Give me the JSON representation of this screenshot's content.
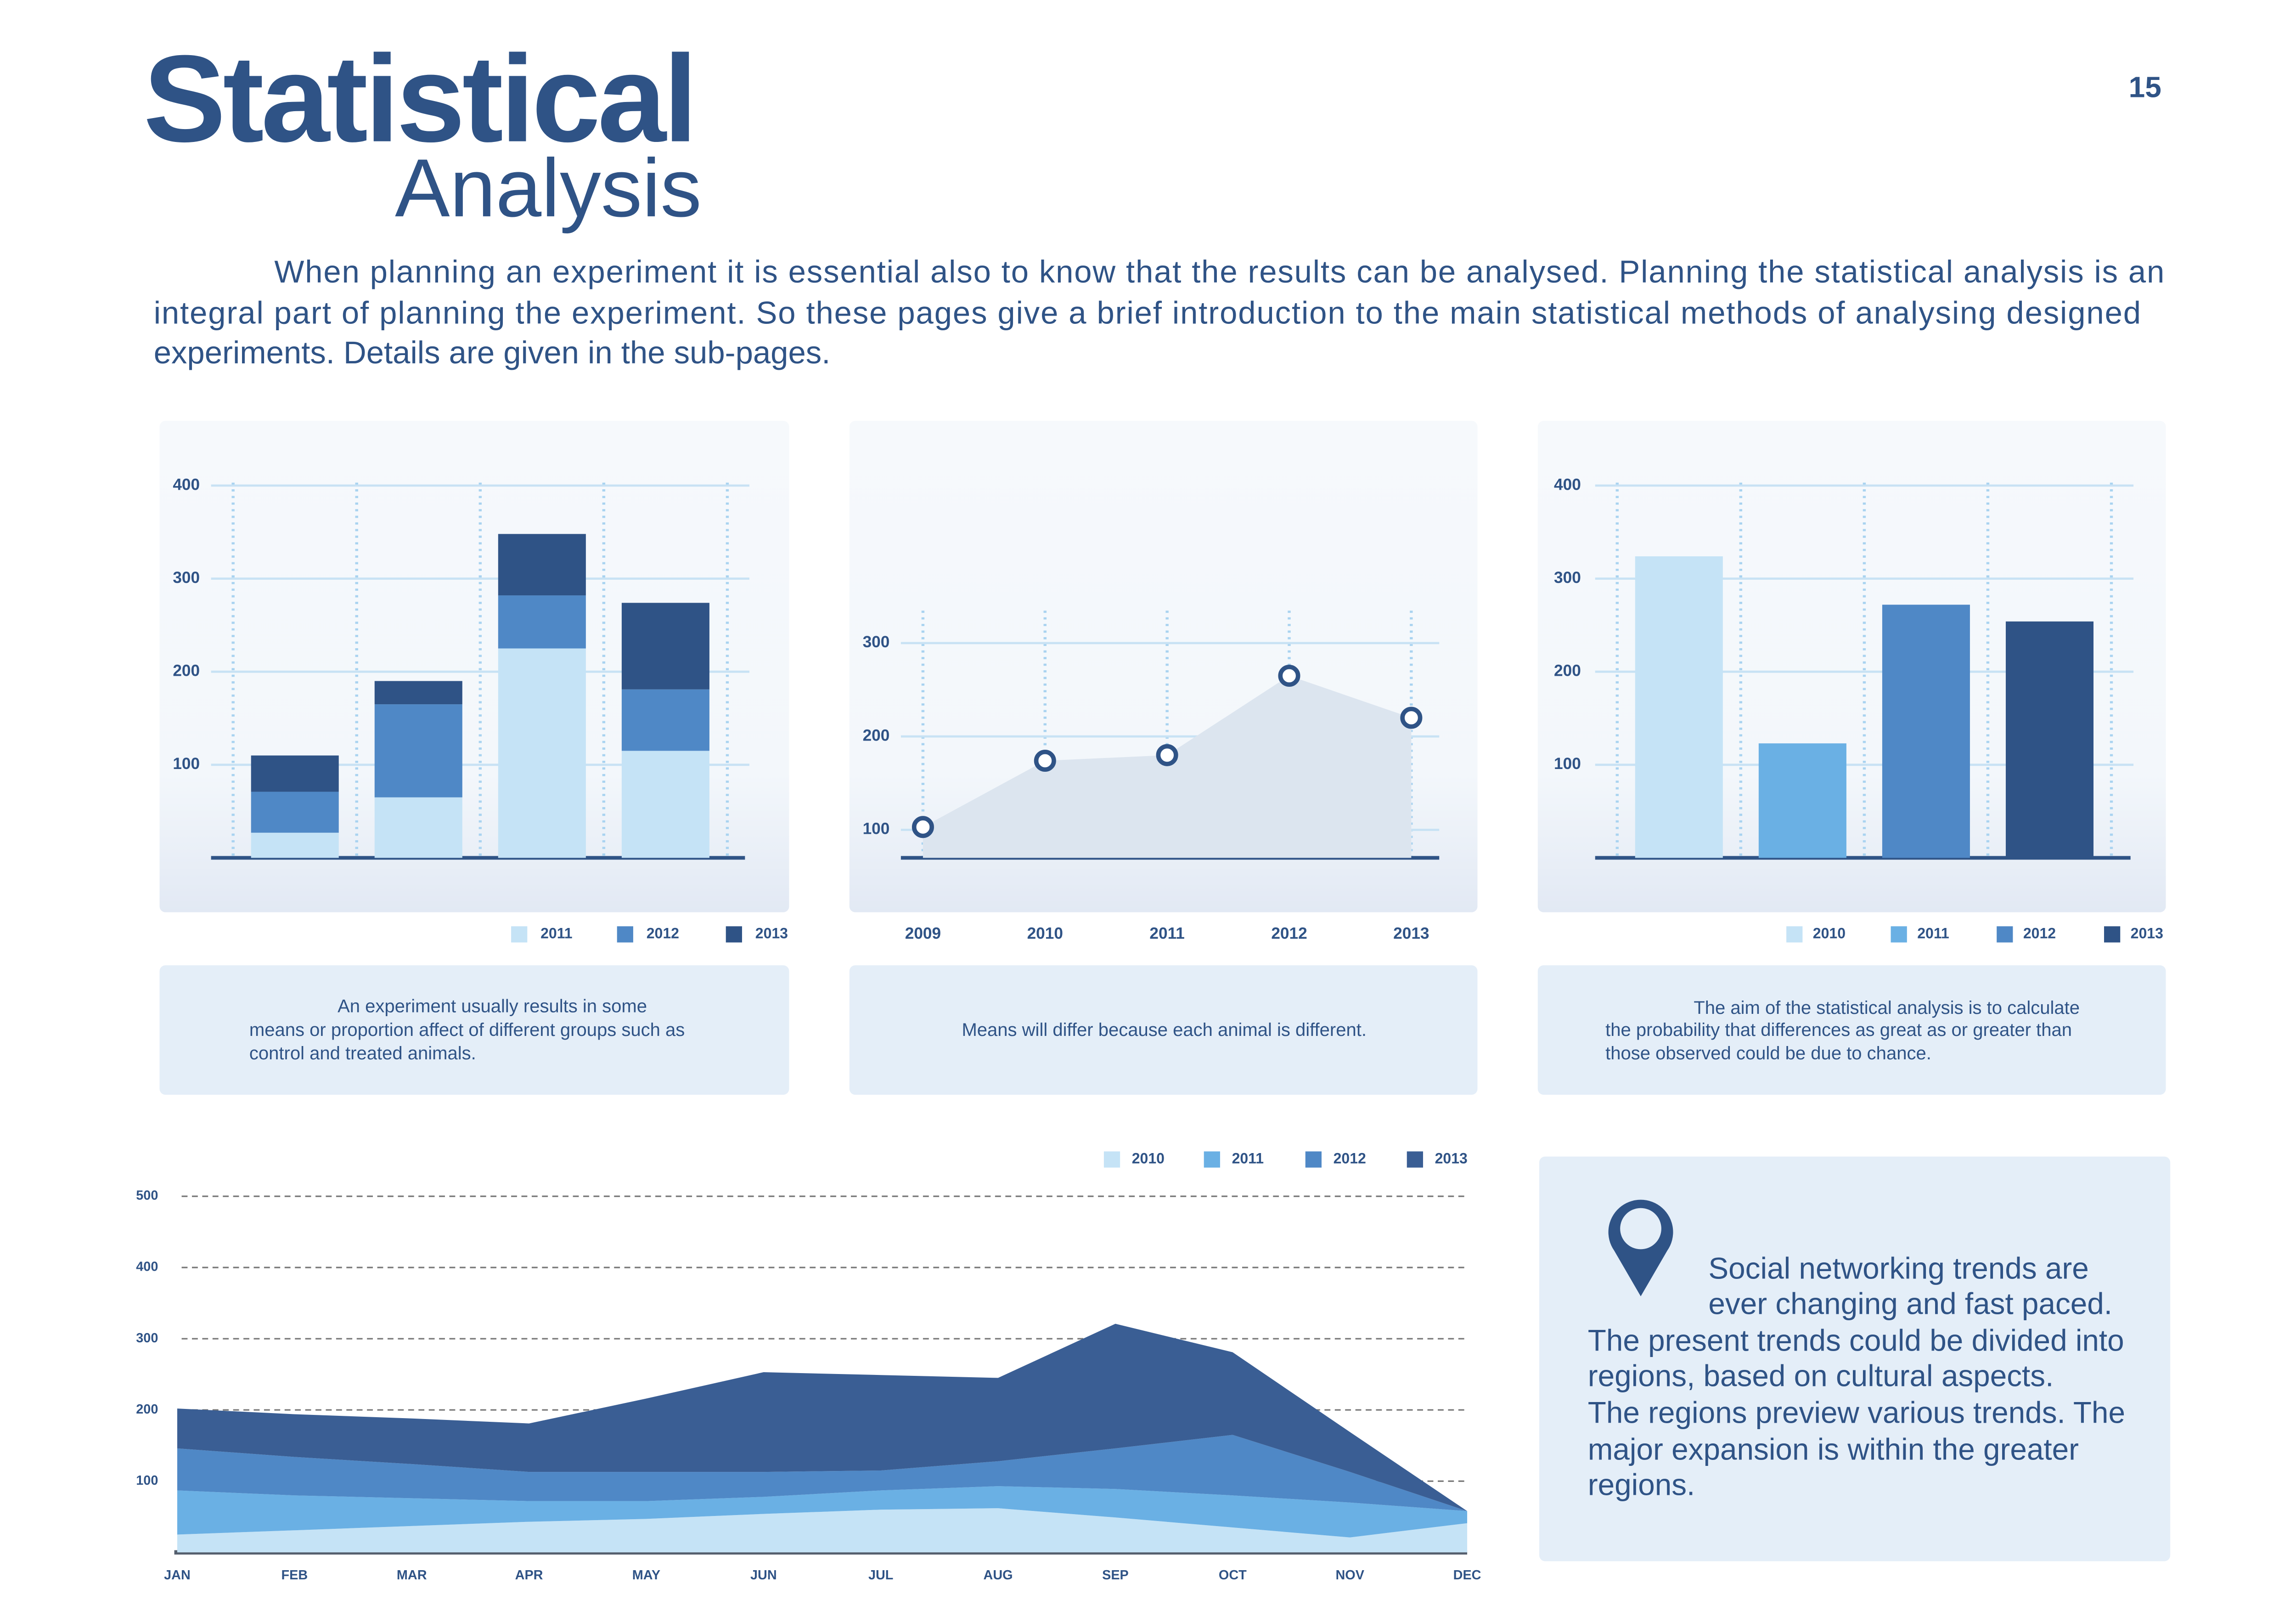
{
  "page": {
    "number": "15",
    "title": "Statistical",
    "subtitle": "Analysis",
    "intro": [
      "When planning an experiment it is essential also to know that the results can be analysed. Planning the statistical analysis is an",
      "integral part of planning the experiment. So these pages give a brief introduction to the main statistical methods of analysing designed",
      "experiments. Details are given in the sub-pages."
    ]
  },
  "chart_data": [
    {
      "type": "bar",
      "stacked": true,
      "categories": [
        null,
        null,
        null,
        null
      ],
      "series": [
        {
          "name": "2011",
          "color": "#c5e3f6",
          "values": [
            27,
            65,
            225,
            115
          ]
        },
        {
          "name": "2012",
          "color": "#4f88c6",
          "values": [
            44,
            100,
            57,
            66
          ]
        },
        {
          "name": "2013",
          "color": "#2f5386",
          "values": [
            39,
            25,
            66,
            93
          ]
        }
      ],
      "ylim": [
        0,
        400
      ],
      "yticks": [
        100,
        200,
        300,
        400
      ],
      "grid": true,
      "legend": true
    },
    {
      "type": "line",
      "categories": [
        "2009",
        "2010",
        "2011",
        "2012",
        "2013"
      ],
      "values": [
        103,
        174,
        180,
        265,
        220
      ],
      "color": "#2f5386",
      "fill_color": "#dce5ef",
      "ylim": [
        70,
        330
      ],
      "yticks": [
        100,
        200,
        300
      ],
      "grid": true
    },
    {
      "type": "bar",
      "stacked": false,
      "categories": [
        null
      ],
      "series": [
        {
          "name": "2010",
          "color": "#c5e3f6",
          "values": [
            324
          ]
        },
        {
          "name": "2011",
          "color": "#6ab0e4",
          "values": [
            123
          ]
        },
        {
          "name": "2012",
          "color": "#4f88c6",
          "values": [
            272
          ]
        },
        {
          "name": "2013",
          "color": "#2f5386",
          "values": [
            254
          ]
        }
      ],
      "ylim": [
        0,
        400
      ],
      "yticks": [
        100,
        200,
        300,
        400
      ],
      "grid": true,
      "legend": true
    },
    {
      "type": "area",
      "stacked": true,
      "categories": [
        "JAN",
        "FEB",
        "MAR",
        "APR",
        "MAY",
        "JUN",
        "JUL",
        "AUG",
        "SEP",
        "OCT",
        "NOV",
        "DEC"
      ],
      "series": [
        {
          "name": "2010",
          "color": "#c5e3f6",
          "values": [
            25,
            31,
            37,
            43,
            47,
            54,
            60,
            62,
            49,
            35,
            21,
            41
          ]
        },
        {
          "name": "2011",
          "color": "#6ab0e4",
          "values": [
            62,
            49,
            39,
            29,
            25,
            24,
            27,
            31,
            40,
            45,
            49,
            17
          ]
        },
        {
          "name": "2012",
          "color": "#4f88c6",
          "values": [
            59,
            54,
            48,
            41,
            41,
            35,
            28,
            35,
            57,
            85,
            43,
            0
          ]
        },
        {
          "name": "2013",
          "color": "#3a5e94",
          "values": [
            56,
            60,
            64,
            68,
            103,
            140,
            134,
            117,
            175,
            116,
            56,
            0
          ]
        }
      ],
      "ylim": [
        0,
        500
      ],
      "yticks": [
        100,
        200,
        300,
        400,
        500
      ],
      "grid": true,
      "legend": true
    }
  ],
  "captions": [
    [
      "An experiment usually results in some",
      "means or proportion affect of different groups such as",
      "control and treated animals."
    ],
    [
      "Means will differ because each animal is different."
    ],
    [
      "The aim of the statistical analysis is to calculate",
      "the probability that differences as great as or greater than",
      "those observed could be due to chance."
    ]
  ],
  "note": [
    "Social networking trends are",
    "ever changing and fast paced.",
    "The present trends could be divided into",
    "regions, based on cultural aspects.",
    "The regions preview various trends. The",
    "major expansion is within the greater",
    "regions."
  ]
}
